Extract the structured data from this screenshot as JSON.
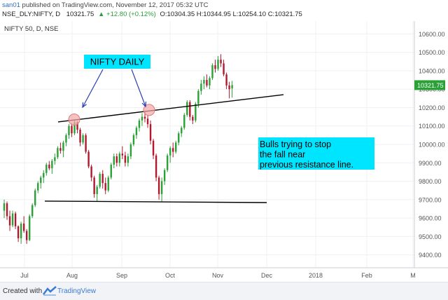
{
  "header": {
    "user": "san01",
    "published": "published on TradingView.com, November 12, 2017 05:32 UTC",
    "symbol": "NSE_DLY:NIFTY, D",
    "last": "10321.75",
    "change": "▲ +12.80 (+0.12%)",
    "ohlc": "O:10304.35 H:10344.95 L:10254.10 C:10321.75"
  },
  "footer": {
    "created": "Created with",
    "brand": "TradingView"
  },
  "chart_data": {
    "type": "candlestick",
    "title": "NIFTY 50, D, NSE",
    "y_ticks": [
      9400,
      9500,
      9600,
      9700,
      9800,
      9900,
      10000,
      10100,
      10200,
      10300,
      10400,
      10500,
      10600
    ],
    "y_tick_labels": [
      "9400.00",
      "9500.00",
      "9600.00",
      "9700.00",
      "9800.00",
      "9900.00",
      "10000.00",
      "10100.00",
      "10200.00",
      "10300.00",
      "10400.00",
      "10500.00",
      "10600.00"
    ],
    "ylim": [
      9330,
      10670
    ],
    "x_ticks": [
      "Jul",
      "Aug",
      "Sep",
      "Oct",
      "Nov",
      "Dec",
      "2018",
      "Feb",
      "M"
    ],
    "last_price_label": "10321.75",
    "candles": [
      {
        "o": 9640,
        "h": 9700,
        "l": 9600,
        "c": 9680
      },
      {
        "o": 9680,
        "h": 9690,
        "l": 9590,
        "c": 9610
      },
      {
        "o": 9610,
        "h": 9640,
        "l": 9530,
        "c": 9560
      },
      {
        "o": 9560,
        "h": 9640,
        "l": 9550,
        "c": 9625
      },
      {
        "o": 9625,
        "h": 9635,
        "l": 9540,
        "c": 9555
      },
      {
        "o": 9555,
        "h": 9560,
        "l": 9470,
        "c": 9490
      },
      {
        "o": 9490,
        "h": 9580,
        "l": 9460,
        "c": 9570
      },
      {
        "o": 9570,
        "h": 9610,
        "l": 9520,
        "c": 9530
      },
      {
        "o": 9530,
        "h": 9540,
        "l": 9460,
        "c": 9480
      },
      {
        "o": 9480,
        "h": 9620,
        "l": 9475,
        "c": 9610
      },
      {
        "o": 9610,
        "h": 9680,
        "l": 9600,
        "c": 9670
      },
      {
        "o": 9670,
        "h": 9760,
        "l": 9660,
        "c": 9750
      },
      {
        "o": 9750,
        "h": 9800,
        "l": 9735,
        "c": 9790
      },
      {
        "o": 9790,
        "h": 9830,
        "l": 9760,
        "c": 9820
      },
      {
        "o": 9820,
        "h": 9860,
        "l": 9790,
        "c": 9845
      },
      {
        "o": 9845,
        "h": 9900,
        "l": 9830,
        "c": 9890
      },
      {
        "o": 9890,
        "h": 9910,
        "l": 9860,
        "c": 9870
      },
      {
        "o": 9870,
        "h": 9920,
        "l": 9840,
        "c": 9910
      },
      {
        "o": 9910,
        "h": 9950,
        "l": 9890,
        "c": 9930
      },
      {
        "o": 9930,
        "h": 9990,
        "l": 9920,
        "c": 9980
      },
      {
        "o": 9980,
        "h": 10010,
        "l": 9950,
        "c": 9965
      },
      {
        "o": 9965,
        "h": 10020,
        "l": 9930,
        "c": 10010
      },
      {
        "o": 10010,
        "h": 10060,
        "l": 9990,
        "c": 10050
      },
      {
        "o": 10050,
        "h": 10110,
        "l": 10030,
        "c": 10100
      },
      {
        "o": 10100,
        "h": 10115,
        "l": 10040,
        "c": 10060
      },
      {
        "o": 10060,
        "h": 10130,
        "l": 10050,
        "c": 10120
      },
      {
        "o": 10120,
        "h": 10125,
        "l": 10060,
        "c": 10080
      },
      {
        "o": 10080,
        "h": 10090,
        "l": 9990,
        "c": 10010
      },
      {
        "o": 10010,
        "h": 10060,
        "l": 10000,
        "c": 10050
      },
      {
        "o": 10050,
        "h": 10060,
        "l": 9950,
        "c": 9960
      },
      {
        "o": 9960,
        "h": 9970,
        "l": 9870,
        "c": 9880
      },
      {
        "o": 9880,
        "h": 9890,
        "l": 9800,
        "c": 9820
      },
      {
        "o": 9820,
        "h": 9830,
        "l": 9710,
        "c": 9730
      },
      {
        "o": 9730,
        "h": 9780,
        "l": 9690,
        "c": 9770
      },
      {
        "o": 9770,
        "h": 9850,
        "l": 9760,
        "c": 9840
      },
      {
        "o": 9840,
        "h": 9860,
        "l": 9760,
        "c": 9790
      },
      {
        "o": 9790,
        "h": 9820,
        "l": 9730,
        "c": 9750
      },
      {
        "o": 9750,
        "h": 9830,
        "l": 9740,
        "c": 9820
      },
      {
        "o": 9820,
        "h": 9900,
        "l": 9810,
        "c": 9890
      },
      {
        "o": 9890,
        "h": 9950,
        "l": 9870,
        "c": 9935
      },
      {
        "o": 9935,
        "h": 9950,
        "l": 9880,
        "c": 9900
      },
      {
        "o": 9900,
        "h": 9960,
        "l": 9880,
        "c": 9950
      },
      {
        "o": 9950,
        "h": 9990,
        "l": 9920,
        "c": 9940
      },
      {
        "o": 9940,
        "h": 9960,
        "l": 9880,
        "c": 9900
      },
      {
        "o": 9900,
        "h": 9950,
        "l": 9880,
        "c": 9935
      },
      {
        "o": 9935,
        "h": 10010,
        "l": 9920,
        "c": 10000
      },
      {
        "o": 10000,
        "h": 10060,
        "l": 9990,
        "c": 10050
      },
      {
        "o": 10050,
        "h": 10100,
        "l": 10030,
        "c": 10090
      },
      {
        "o": 10090,
        "h": 10140,
        "l": 10070,
        "c": 10130
      },
      {
        "o": 10130,
        "h": 10170,
        "l": 10100,
        "c": 10150
      },
      {
        "o": 10150,
        "h": 10180,
        "l": 10120,
        "c": 10140
      },
      {
        "o": 10140,
        "h": 10160,
        "l": 10090,
        "c": 10110
      },
      {
        "o": 10110,
        "h": 10130,
        "l": 10000,
        "c": 10020
      },
      {
        "o": 10020,
        "h": 10030,
        "l": 9920,
        "c": 9940
      },
      {
        "o": 9940,
        "h": 9950,
        "l": 9800,
        "c": 9820
      },
      {
        "o": 9820,
        "h": 9830,
        "l": 9700,
        "c": 9730
      },
      {
        "o": 9730,
        "h": 9820,
        "l": 9690,
        "c": 9800
      },
      {
        "o": 9800,
        "h": 9870,
        "l": 9780,
        "c": 9860
      },
      {
        "o": 9860,
        "h": 9950,
        "l": 9850,
        "c": 9940
      },
      {
        "o": 9940,
        "h": 9990,
        "l": 9900,
        "c": 9980
      },
      {
        "o": 9980,
        "h": 10010,
        "l": 9930,
        "c": 9960
      },
      {
        "o": 9960,
        "h": 10020,
        "l": 9950,
        "c": 10010
      },
      {
        "o": 10010,
        "h": 10070,
        "l": 9995,
        "c": 10060
      },
      {
        "o": 10060,
        "h": 10100,
        "l": 10040,
        "c": 10090
      },
      {
        "o": 10090,
        "h": 10170,
        "l": 10080,
        "c": 10160
      },
      {
        "o": 10160,
        "h": 10240,
        "l": 10150,
        "c": 10230
      },
      {
        "o": 10230,
        "h": 10240,
        "l": 10130,
        "c": 10150
      },
      {
        "o": 10150,
        "h": 10160,
        "l": 10110,
        "c": 10130
      },
      {
        "o": 10130,
        "h": 10230,
        "l": 10120,
        "c": 10220
      },
      {
        "o": 10220,
        "h": 10300,
        "l": 10200,
        "c": 10290
      },
      {
        "o": 10290,
        "h": 10350,
        "l": 10270,
        "c": 10330
      },
      {
        "o": 10330,
        "h": 10370,
        "l": 10300,
        "c": 10350
      },
      {
        "o": 10350,
        "h": 10380,
        "l": 10310,
        "c": 10320
      },
      {
        "o": 10320,
        "h": 10370,
        "l": 10300,
        "c": 10360
      },
      {
        "o": 10360,
        "h": 10440,
        "l": 10350,
        "c": 10430
      },
      {
        "o": 10430,
        "h": 10460,
        "l": 10390,
        "c": 10410
      },
      {
        "o": 10410,
        "h": 10480,
        "l": 10400,
        "c": 10460
      },
      {
        "o": 10460,
        "h": 10490,
        "l": 10420,
        "c": 10440
      },
      {
        "o": 10440,
        "h": 10460,
        "l": 10370,
        "c": 10380
      },
      {
        "o": 10380,
        "h": 10390,
        "l": 10300,
        "c": 10320
      },
      {
        "o": 10320,
        "h": 10340,
        "l": 10250,
        "c": 10300
      },
      {
        "o": 10304.35,
        "h": 10344.95,
        "l": 10254.1,
        "c": 10321.75
      }
    ],
    "annotations": {
      "label_top": "NIFTY DAILY",
      "label_right": "Bulls trying to stop the fall near previous resistance line."
    },
    "colors": {
      "up": "#2aa136",
      "down": "#b0182e",
      "label_bg": "#00e5ff",
      "marker": "#f4a6a6"
    },
    "grid": true
  }
}
